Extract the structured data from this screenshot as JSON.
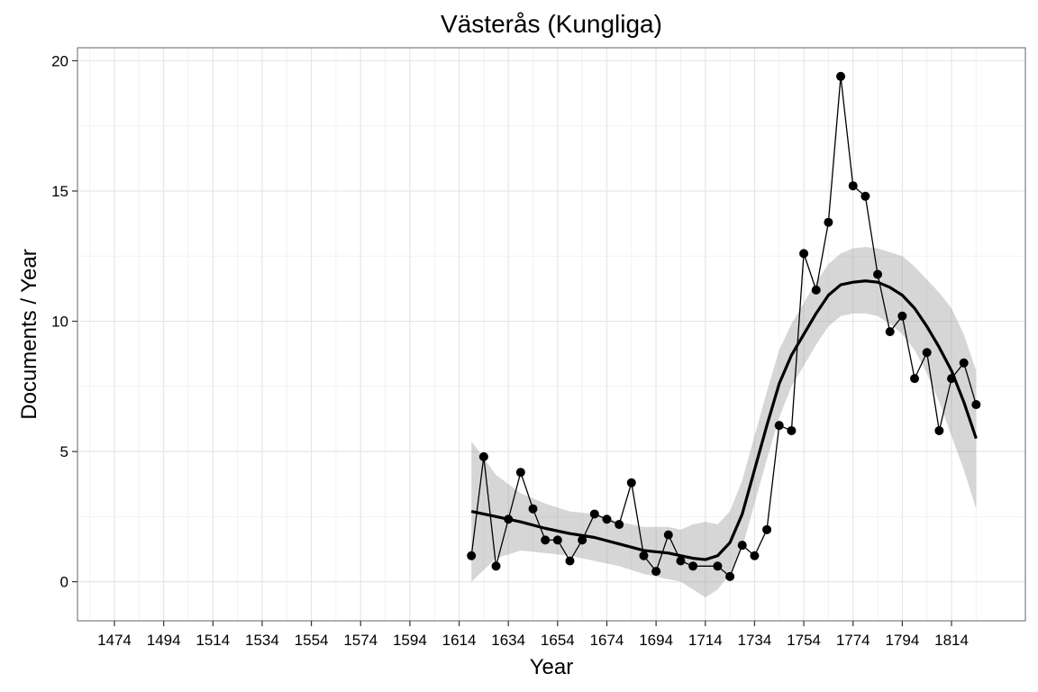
{
  "chart_data": {
    "type": "line",
    "title": "Västerås (Kungliga)",
    "xlabel": "Year",
    "ylabel": "Documents / Year",
    "xlim": [
      1459,
      1844
    ],
    "ylim": [
      -1.5,
      20.5
    ],
    "x_ticks": [
      1474,
      1494,
      1514,
      1534,
      1554,
      1574,
      1594,
      1614,
      1634,
      1654,
      1674,
      1694,
      1714,
      1734,
      1754,
      1774,
      1794,
      1814
    ],
    "y_ticks": [
      0,
      5,
      10,
      15,
      20
    ],
    "grid": true,
    "legend": "none",
    "series": [
      {
        "kind": "points-line",
        "x": [
          1619,
          1624,
          1629,
          1634,
          1639,
          1644,
          1649,
          1654,
          1659,
          1664,
          1669,
          1674,
          1679,
          1684,
          1689,
          1694,
          1699,
          1704,
          1709,
          1719,
          1724,
          1729,
          1734,
          1739,
          1744,
          1749,
          1754,
          1759,
          1764,
          1769,
          1774,
          1779,
          1784,
          1789,
          1794,
          1799,
          1804,
          1809,
          1814,
          1819,
          1824
        ],
        "y": [
          1.0,
          4.8,
          0.6,
          2.4,
          4.2,
          2.8,
          1.6,
          1.6,
          0.8,
          1.6,
          2.6,
          2.4,
          2.2,
          3.8,
          1.0,
          0.4,
          1.8,
          0.8,
          0.6,
          0.6,
          0.2,
          1.4,
          1.0,
          2.0,
          6.0,
          5.8,
          12.6,
          11.2,
          13.8,
          19.4,
          15.2,
          14.8,
          11.8,
          9.6,
          10.2,
          7.8,
          8.8,
          5.8,
          7.8,
          8.4,
          6.8
        ]
      },
      {
        "kind": "smooth",
        "x": [
          1619,
          1629,
          1639,
          1649,
          1659,
          1669,
          1679,
          1689,
          1699,
          1704,
          1709,
          1714,
          1719,
          1724,
          1729,
          1734,
          1739,
          1744,
          1749,
          1754,
          1759,
          1764,
          1769,
          1774,
          1779,
          1784,
          1789,
          1794,
          1799,
          1804,
          1809,
          1814,
          1819,
          1824
        ],
        "y": [
          2.7,
          2.5,
          2.3,
          2.05,
          1.85,
          1.7,
          1.45,
          1.2,
          1.1,
          1.0,
          0.9,
          0.85,
          1.0,
          1.5,
          2.6,
          4.3,
          6.0,
          7.6,
          8.7,
          9.5,
          10.3,
          11.0,
          11.4,
          11.5,
          11.55,
          11.5,
          11.3,
          11.0,
          10.5,
          9.8,
          9.0,
          8.1,
          6.9,
          5.5
        ],
        "ci_low": [
          0.0,
          0.9,
          1.2,
          1.1,
          1.0,
          0.8,
          0.6,
          0.3,
          0.1,
          0.0,
          -0.3,
          -0.6,
          -0.3,
          0.3,
          1.3,
          3.0,
          4.7,
          6.3,
          7.5,
          8.3,
          9.1,
          9.8,
          10.2,
          10.3,
          10.3,
          10.2,
          9.9,
          9.5,
          8.9,
          8.0,
          6.9,
          5.6,
          4.3,
          2.8
        ],
        "ci_high": [
          5.4,
          4.1,
          3.4,
          3.0,
          2.7,
          2.6,
          2.3,
          2.1,
          2.1,
          2.0,
          2.2,
          2.3,
          2.2,
          2.7,
          3.9,
          5.6,
          7.3,
          8.9,
          9.9,
          10.7,
          11.5,
          12.2,
          12.6,
          12.8,
          12.85,
          12.8,
          12.65,
          12.5,
          12.1,
          11.6,
          11.1,
          10.5,
          9.5,
          8.1
        ]
      }
    ]
  }
}
